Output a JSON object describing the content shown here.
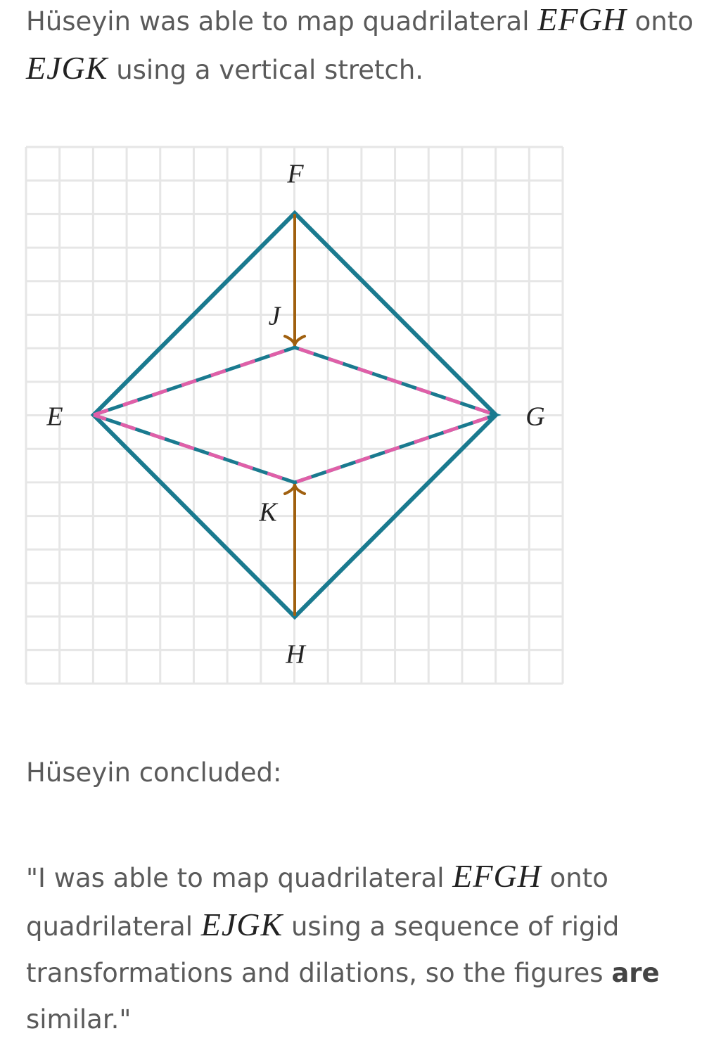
{
  "intro": {
    "before": "Hüseyin was able to map quadrilateral",
    "figure1": "EFGH",
    "middle": "onto",
    "figure2": "EJGK",
    "after": "using a vertical stretch."
  },
  "diagram": {
    "labels": {
      "F": "F",
      "J": "J",
      "E": "E",
      "G": "G",
      "K": "K",
      "H": "H"
    }
  },
  "conclusion_intro": "Hüseyin concluded:",
  "quote": {
    "part1": "\"I was able to map quadrilateral",
    "figure1": "EFGH",
    "part2": "onto quadrilateral",
    "figure2": "EJGK",
    "part3": "using a sequence of rigid transformations and dilations, so the figures",
    "emphasis": "are",
    "part4": "similar.\""
  }
}
